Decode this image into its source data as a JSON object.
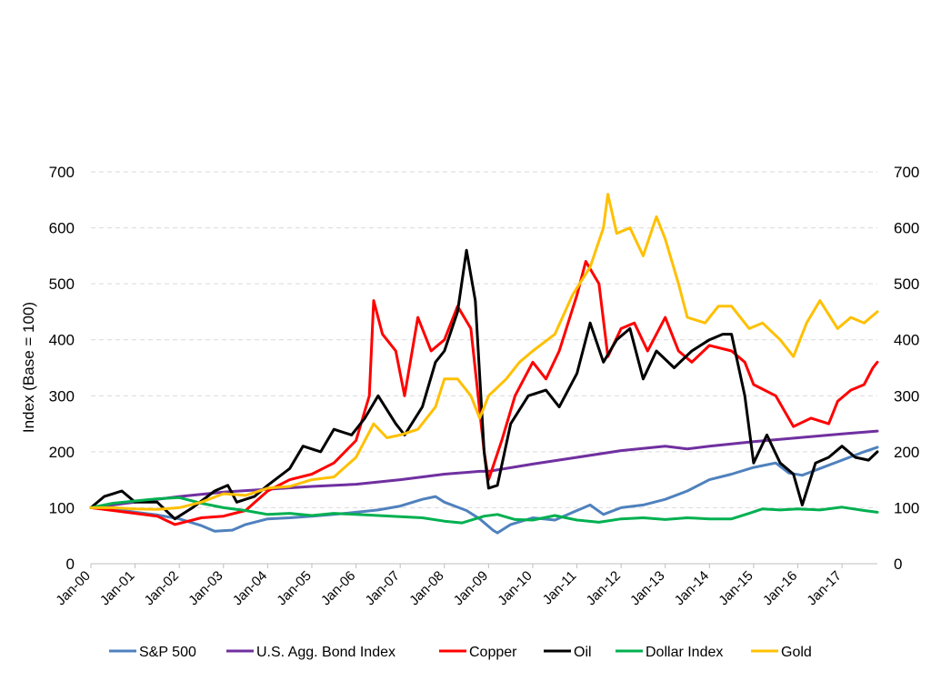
{
  "chart_data": {
    "type": "line",
    "ylabel": "Index (Base = 100)",
    "ylim": [
      0,
      700
    ],
    "yticks": [
      "0",
      "100",
      "200",
      "300",
      "400",
      "500",
      "600",
      "700"
    ],
    "secondary_yticks": [
      "0",
      "100",
      "200",
      "300",
      "400",
      "500",
      "600",
      "700"
    ],
    "x_tick_labels": [
      "Jan-00",
      "Jan-01",
      "Jan-02",
      "Jan-03",
      "Jan-04",
      "Jan-05",
      "Jan-06",
      "Jan-07",
      "Jan-08",
      "Jan-09",
      "Jan-10",
      "Jan-11",
      "Jan-12",
      "Jan-13",
      "Jan-14",
      "Jan-15",
      "Jan-16",
      "Jan-17"
    ],
    "xlim": [
      2000.0,
      2017.8
    ],
    "grid": "horizontal dashed",
    "legend_position": "bottom",
    "series": [
      {
        "name": "S&P 500",
        "color": "#4F81BD",
        "points": [
          [
            2000.0,
            100
          ],
          [
            2000.5,
            98
          ],
          [
            2001.0,
            92
          ],
          [
            2001.5,
            87
          ],
          [
            2002.0,
            80
          ],
          [
            2002.5,
            68
          ],
          [
            2002.8,
            58
          ],
          [
            2003.2,
            60
          ],
          [
            2003.5,
            70
          ],
          [
            2004.0,
            80
          ],
          [
            2004.5,
            82
          ],
          [
            2005.0,
            85
          ],
          [
            2005.5,
            88
          ],
          [
            2006.0,
            92
          ],
          [
            2006.5,
            96
          ],
          [
            2007.0,
            103
          ],
          [
            2007.5,
            115
          ],
          [
            2007.8,
            120
          ],
          [
            2008.0,
            110
          ],
          [
            2008.5,
            95
          ],
          [
            2008.8,
            80
          ],
          [
            2009.1,
            60
          ],
          [
            2009.2,
            55
          ],
          [
            2009.5,
            70
          ],
          [
            2010.0,
            82
          ],
          [
            2010.5,
            78
          ],
          [
            2011.0,
            95
          ],
          [
            2011.3,
            105
          ],
          [
            2011.6,
            88
          ],
          [
            2012.0,
            100
          ],
          [
            2012.5,
            105
          ],
          [
            2013.0,
            115
          ],
          [
            2013.5,
            130
          ],
          [
            2014.0,
            150
          ],
          [
            2014.5,
            160
          ],
          [
            2015.0,
            172
          ],
          [
            2015.5,
            180
          ],
          [
            2015.8,
            162
          ],
          [
            2016.1,
            158
          ],
          [
            2016.5,
            170
          ],
          [
            2017.0,
            185
          ],
          [
            2017.5,
            200
          ],
          [
            2017.8,
            208
          ]
        ]
      },
      {
        "name": "U.S. Agg. Bond Index",
        "color": "#7030A0",
        "points": [
          [
            2000.0,
            100
          ],
          [
            2001.0,
            110
          ],
          [
            2002.0,
            120
          ],
          [
            2003.0,
            128
          ],
          [
            2004.0,
            133
          ],
          [
            2005.0,
            138
          ],
          [
            2006.0,
            142
          ],
          [
            2007.0,
            150
          ],
          [
            2008.0,
            160
          ],
          [
            2008.8,
            165
          ],
          [
            2009.0,
            165
          ],
          [
            2010.0,
            178
          ],
          [
            2011.0,
            190
          ],
          [
            2012.0,
            202
          ],
          [
            2013.0,
            210
          ],
          [
            2013.5,
            205
          ],
          [
            2014.0,
            210
          ],
          [
            2015.0,
            218
          ],
          [
            2016.0,
            225
          ],
          [
            2017.0,
            232
          ],
          [
            2017.8,
            237
          ]
        ]
      },
      {
        "name": "Copper",
        "color": "#FF0000",
        "points": [
          [
            2000.0,
            100
          ],
          [
            2000.5,
            95
          ],
          [
            2001.0,
            90
          ],
          [
            2001.5,
            85
          ],
          [
            2001.9,
            70
          ],
          [
            2002.5,
            82
          ],
          [
            2003.0,
            85
          ],
          [
            2003.5,
            95
          ],
          [
            2004.0,
            130
          ],
          [
            2004.5,
            150
          ],
          [
            2005.0,
            160
          ],
          [
            2005.5,
            180
          ],
          [
            2006.0,
            220
          ],
          [
            2006.3,
            300
          ],
          [
            2006.4,
            470
          ],
          [
            2006.6,
            410
          ],
          [
            2006.9,
            380
          ],
          [
            2007.1,
            300
          ],
          [
            2007.4,
            440
          ],
          [
            2007.7,
            380
          ],
          [
            2008.0,
            400
          ],
          [
            2008.3,
            460
          ],
          [
            2008.6,
            420
          ],
          [
            2008.9,
            200
          ],
          [
            2009.0,
            150
          ],
          [
            2009.3,
            220
          ],
          [
            2009.6,
            300
          ],
          [
            2010.0,
            360
          ],
          [
            2010.3,
            330
          ],
          [
            2010.6,
            380
          ],
          [
            2011.0,
            480
          ],
          [
            2011.2,
            540
          ],
          [
            2011.5,
            500
          ],
          [
            2011.7,
            370
          ],
          [
            2012.0,
            420
          ],
          [
            2012.3,
            430
          ],
          [
            2012.6,
            380
          ],
          [
            2013.0,
            440
          ],
          [
            2013.3,
            380
          ],
          [
            2013.6,
            360
          ],
          [
            2014.0,
            390
          ],
          [
            2014.5,
            380
          ],
          [
            2014.8,
            360
          ],
          [
            2015.0,
            320
          ],
          [
            2015.5,
            300
          ],
          [
            2015.9,
            245
          ],
          [
            2016.3,
            260
          ],
          [
            2016.7,
            250
          ],
          [
            2016.9,
            290
          ],
          [
            2017.2,
            310
          ],
          [
            2017.5,
            320
          ],
          [
            2017.7,
            350
          ],
          [
            2017.8,
            360
          ]
        ]
      },
      {
        "name": "Oil",
        "color": "#000000",
        "points": [
          [
            2000.0,
            100
          ],
          [
            2000.3,
            120
          ],
          [
            2000.7,
            130
          ],
          [
            2001.0,
            110
          ],
          [
            2001.5,
            110
          ],
          [
            2001.9,
            80
          ],
          [
            2002.3,
            100
          ],
          [
            2002.8,
            130
          ],
          [
            2003.1,
            140
          ],
          [
            2003.3,
            110
          ],
          [
            2003.7,
            120
          ],
          [
            2004.0,
            140
          ],
          [
            2004.5,
            170
          ],
          [
            2004.8,
            210
          ],
          [
            2005.2,
            200
          ],
          [
            2005.5,
            240
          ],
          [
            2005.9,
            230
          ],
          [
            2006.2,
            260
          ],
          [
            2006.5,
            300
          ],
          [
            2006.9,
            250
          ],
          [
            2007.1,
            230
          ],
          [
            2007.5,
            280
          ],
          [
            2007.8,
            360
          ],
          [
            2008.0,
            380
          ],
          [
            2008.3,
            450
          ],
          [
            2008.5,
            560
          ],
          [
            2008.7,
            470
          ],
          [
            2008.9,
            200
          ],
          [
            2009.0,
            135
          ],
          [
            2009.2,
            140
          ],
          [
            2009.5,
            250
          ],
          [
            2009.9,
            300
          ],
          [
            2010.3,
            310
          ],
          [
            2010.6,
            280
          ],
          [
            2011.0,
            340
          ],
          [
            2011.3,
            430
          ],
          [
            2011.6,
            360
          ],
          [
            2011.9,
            400
          ],
          [
            2012.2,
            420
          ],
          [
            2012.5,
            330
          ],
          [
            2012.8,
            380
          ],
          [
            2013.2,
            350
          ],
          [
            2013.6,
            380
          ],
          [
            2014.0,
            400
          ],
          [
            2014.3,
            410
          ],
          [
            2014.5,
            410
          ],
          [
            2014.8,
            300
          ],
          [
            2015.0,
            180
          ],
          [
            2015.3,
            230
          ],
          [
            2015.6,
            180
          ],
          [
            2015.9,
            160
          ],
          [
            2016.1,
            105
          ],
          [
            2016.4,
            180
          ],
          [
            2016.7,
            190
          ],
          [
            2017.0,
            210
          ],
          [
            2017.3,
            190
          ],
          [
            2017.6,
            185
          ],
          [
            2017.8,
            200
          ]
        ]
      },
      {
        "name": "Dollar Index",
        "color": "#00B050",
        "points": [
          [
            2000.0,
            100
          ],
          [
            2000.5,
            108
          ],
          [
            2001.0,
            112
          ],
          [
            2001.5,
            116
          ],
          [
            2002.0,
            118
          ],
          [
            2002.5,
            108
          ],
          [
            2003.0,
            100
          ],
          [
            2003.5,
            95
          ],
          [
            2004.0,
            88
          ],
          [
            2004.5,
            90
          ],
          [
            2005.0,
            86
          ],
          [
            2005.5,
            90
          ],
          [
            2006.0,
            88
          ],
          [
            2006.5,
            86
          ],
          [
            2007.0,
            84
          ],
          [
            2007.5,
            82
          ],
          [
            2008.0,
            76
          ],
          [
            2008.4,
            73
          ],
          [
            2008.9,
            85
          ],
          [
            2009.2,
            88
          ],
          [
            2009.6,
            79
          ],
          [
            2010.0,
            78
          ],
          [
            2010.5,
            86
          ],
          [
            2011.0,
            78
          ],
          [
            2011.5,
            74
          ],
          [
            2012.0,
            80
          ],
          [
            2012.5,
            82
          ],
          [
            2013.0,
            79
          ],
          [
            2013.5,
            82
          ],
          [
            2014.0,
            80
          ],
          [
            2014.5,
            80
          ],
          [
            2014.9,
            90
          ],
          [
            2015.2,
            98
          ],
          [
            2015.6,
            96
          ],
          [
            2016.0,
            98
          ],
          [
            2016.5,
            96
          ],
          [
            2017.0,
            101
          ],
          [
            2017.5,
            95
          ],
          [
            2017.8,
            92
          ]
        ]
      },
      {
        "name": "Gold",
        "color": "#FFC000",
        "points": [
          [
            2000.0,
            100
          ],
          [
            2000.5,
            100
          ],
          [
            2001.0,
            98
          ],
          [
            2001.5,
            97
          ],
          [
            2002.0,
            100
          ],
          [
            2002.5,
            110
          ],
          [
            2003.0,
            125
          ],
          [
            2003.5,
            122
          ],
          [
            2004.0,
            135
          ],
          [
            2004.5,
            138
          ],
          [
            2005.0,
            150
          ],
          [
            2005.5,
            155
          ],
          [
            2006.0,
            190
          ],
          [
            2006.4,
            250
          ],
          [
            2006.7,
            225
          ],
          [
            2007.0,
            230
          ],
          [
            2007.4,
            240
          ],
          [
            2007.8,
            280
          ],
          [
            2008.0,
            330
          ],
          [
            2008.3,
            330
          ],
          [
            2008.6,
            300
          ],
          [
            2008.8,
            260
          ],
          [
            2009.0,
            300
          ],
          [
            2009.4,
            330
          ],
          [
            2009.7,
            360
          ],
          [
            2010.0,
            380
          ],
          [
            2010.5,
            410
          ],
          [
            2010.9,
            480
          ],
          [
            2011.3,
            530
          ],
          [
            2011.6,
            600
          ],
          [
            2011.7,
            660
          ],
          [
            2011.9,
            590
          ],
          [
            2012.2,
            600
          ],
          [
            2012.5,
            550
          ],
          [
            2012.8,
            620
          ],
          [
            2013.0,
            580
          ],
          [
            2013.3,
            500
          ],
          [
            2013.5,
            440
          ],
          [
            2013.9,
            430
          ],
          [
            2014.2,
            460
          ],
          [
            2014.5,
            460
          ],
          [
            2014.9,
            420
          ],
          [
            2015.2,
            430
          ],
          [
            2015.6,
            400
          ],
          [
            2015.9,
            370
          ],
          [
            2016.2,
            430
          ],
          [
            2016.5,
            470
          ],
          [
            2016.9,
            420
          ],
          [
            2017.2,
            440
          ],
          [
            2017.5,
            430
          ],
          [
            2017.8,
            450
          ]
        ]
      }
    ]
  }
}
